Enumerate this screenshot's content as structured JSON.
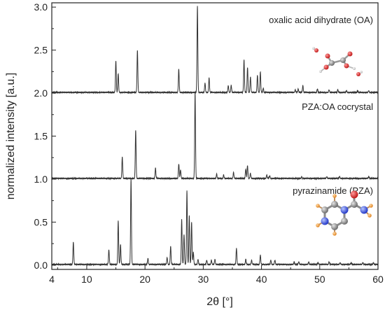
{
  "chart_data": {
    "type": "line",
    "title": "",
    "xlabel": "2θ [°]",
    "ylabel": "normalized intensity [a.u.]",
    "xlim": [
      4,
      60
    ],
    "ylim": [
      -0.05,
      3.05
    ],
    "xticks": [
      4,
      10,
      20,
      30,
      40,
      50,
      60
    ],
    "yticks": [
      0.0,
      0.5,
      1.0,
      1.5,
      2.0,
      2.5,
      3.0
    ],
    "ytick_labels": [
      "0.0",
      "0.5",
      "1.0",
      "1.5",
      "2.0",
      "2.5",
      "3.0"
    ],
    "grid": false,
    "legend": "none",
    "series": [
      {
        "name": "oxalic acid dihydrate (OA)",
        "offset": 2.0,
        "color": "#333333",
        "peaks": [
          [
            15.0,
            0.37
          ],
          [
            15.4,
            0.22
          ],
          [
            18.7,
            0.49
          ],
          [
            25.8,
            0.27
          ],
          [
            29.0,
            1.0
          ],
          [
            30.3,
            0.11
          ],
          [
            31.0,
            0.17
          ],
          [
            34.3,
            0.08
          ],
          [
            34.8,
            0.08
          ],
          [
            37.0,
            0.38
          ],
          [
            37.6,
            0.29
          ],
          [
            38.1,
            0.18
          ],
          [
            39.3,
            0.2
          ],
          [
            39.8,
            0.24
          ],
          [
            40.3,
            0.05
          ],
          [
            45.8,
            0.03
          ],
          [
            46.3,
            0.04
          ],
          [
            47.1,
            0.08
          ],
          [
            49.6,
            0.04
          ],
          [
            51.6,
            0.03
          ],
          [
            53.1,
            0.03
          ],
          [
            54.6,
            0.02
          ],
          [
            56.5,
            0.02
          ],
          [
            58.4,
            0.02
          ]
        ]
      },
      {
        "name": "PZA:OA cocrystal",
        "offset": 1.0,
        "color": "#333333",
        "peaks": [
          [
            16.1,
            0.25
          ],
          [
            18.4,
            0.56
          ],
          [
            21.8,
            0.12
          ],
          [
            25.8,
            0.17
          ],
          [
            26.1,
            0.1
          ],
          [
            28.6,
            1.0
          ],
          [
            32.3,
            0.05
          ],
          [
            33.5,
            0.04
          ],
          [
            35.2,
            0.07
          ],
          [
            37.3,
            0.11
          ],
          [
            37.6,
            0.15
          ],
          [
            38.1,
            0.06
          ],
          [
            40.9,
            0.04
          ],
          [
            41.4,
            0.03
          ],
          [
            46.9,
            0.02
          ],
          [
            51.2,
            0.02
          ],
          [
            53.4,
            0.02
          ],
          [
            58.4,
            0.02
          ]
        ]
      },
      {
        "name": "pyrazinamide (PZA)",
        "offset": 0.0,
        "color": "#333333",
        "peaks": [
          [
            7.7,
            0.26
          ],
          [
            13.8,
            0.17
          ],
          [
            15.4,
            0.51
          ],
          [
            15.8,
            0.23
          ],
          [
            17.6,
            1.0
          ],
          [
            20.5,
            0.07
          ],
          [
            23.8,
            0.08
          ],
          [
            24.4,
            0.21
          ],
          [
            26.3,
            0.52
          ],
          [
            26.7,
            0.35
          ],
          [
            27.2,
            0.86
          ],
          [
            27.6,
            0.57
          ],
          [
            28.0,
            0.49
          ],
          [
            28.3,
            0.14
          ],
          [
            29.1,
            0.06
          ],
          [
            30.6,
            0.05
          ],
          [
            31.4,
            0.05
          ],
          [
            32.0,
            0.06
          ],
          [
            35.7,
            0.19
          ],
          [
            37.3,
            0.06
          ],
          [
            38.3,
            0.05
          ],
          [
            39.8,
            0.11
          ],
          [
            41.6,
            0.05
          ],
          [
            42.3,
            0.05
          ],
          [
            45.6,
            0.03
          ],
          [
            46.4,
            0.03
          ],
          [
            48.1,
            0.03
          ],
          [
            49.7,
            0.02
          ],
          [
            51.6,
            0.03
          ],
          [
            53.5,
            0.02
          ],
          [
            55.4,
            0.02
          ],
          [
            57.4,
            0.02
          ],
          [
            59.2,
            0.02
          ]
        ]
      }
    ]
  }
}
